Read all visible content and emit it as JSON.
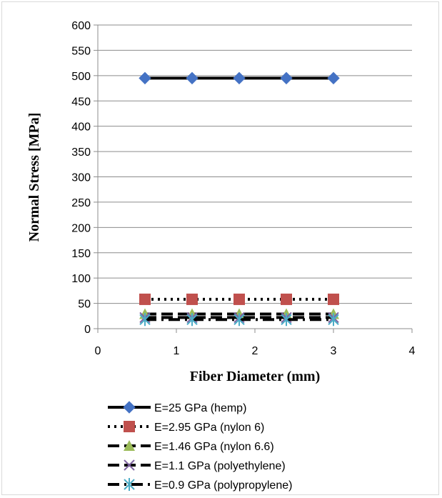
{
  "chart_data": {
    "type": "line",
    "title": "",
    "xlabel": "Fiber Diameter (mm)",
    "ylabel": "Normal Stress [MPa]",
    "xlim": [
      0,
      4
    ],
    "ylim": [
      0,
      600
    ],
    "x_ticks": [
      0,
      1,
      2,
      3,
      4
    ],
    "y_ticks": [
      0,
      50,
      100,
      150,
      200,
      250,
      300,
      350,
      400,
      450,
      500,
      550,
      600
    ],
    "grid": "horizontal",
    "legend_position": "bottom",
    "x": [
      0.6,
      1.2,
      1.8,
      2.4,
      3.0
    ],
    "series": [
      {
        "name": "E=25 GPa (hemp)",
        "values": [
          495,
          495,
          495,
          495,
          495
        ],
        "color": "#4472c4",
        "marker": "diamond",
        "line": "solid"
      },
      {
        "name": "E=2.95 GPa (nylon 6)",
        "values": [
          58,
          58,
          58,
          58,
          58
        ],
        "color": "#c0504d",
        "marker": "square",
        "line": "dotted"
      },
      {
        "name": "E=1.46 GPa (nylon 6.6)",
        "values": [
          29,
          29,
          29,
          29,
          29
        ],
        "color": "#9bbb59",
        "marker": "triangle",
        "line": "dashed"
      },
      {
        "name": "E=1.1 GPa (polyethylene)",
        "values": [
          22,
          22,
          22,
          22,
          22
        ],
        "color": "#8064a2",
        "marker": "x",
        "line": "dashed"
      },
      {
        "name": "E=0.9 GPa (polypropylene)",
        "values": [
          18,
          18,
          18,
          18,
          18
        ],
        "color": "#4bacc6",
        "marker": "star",
        "line": "dashdot"
      }
    ]
  }
}
